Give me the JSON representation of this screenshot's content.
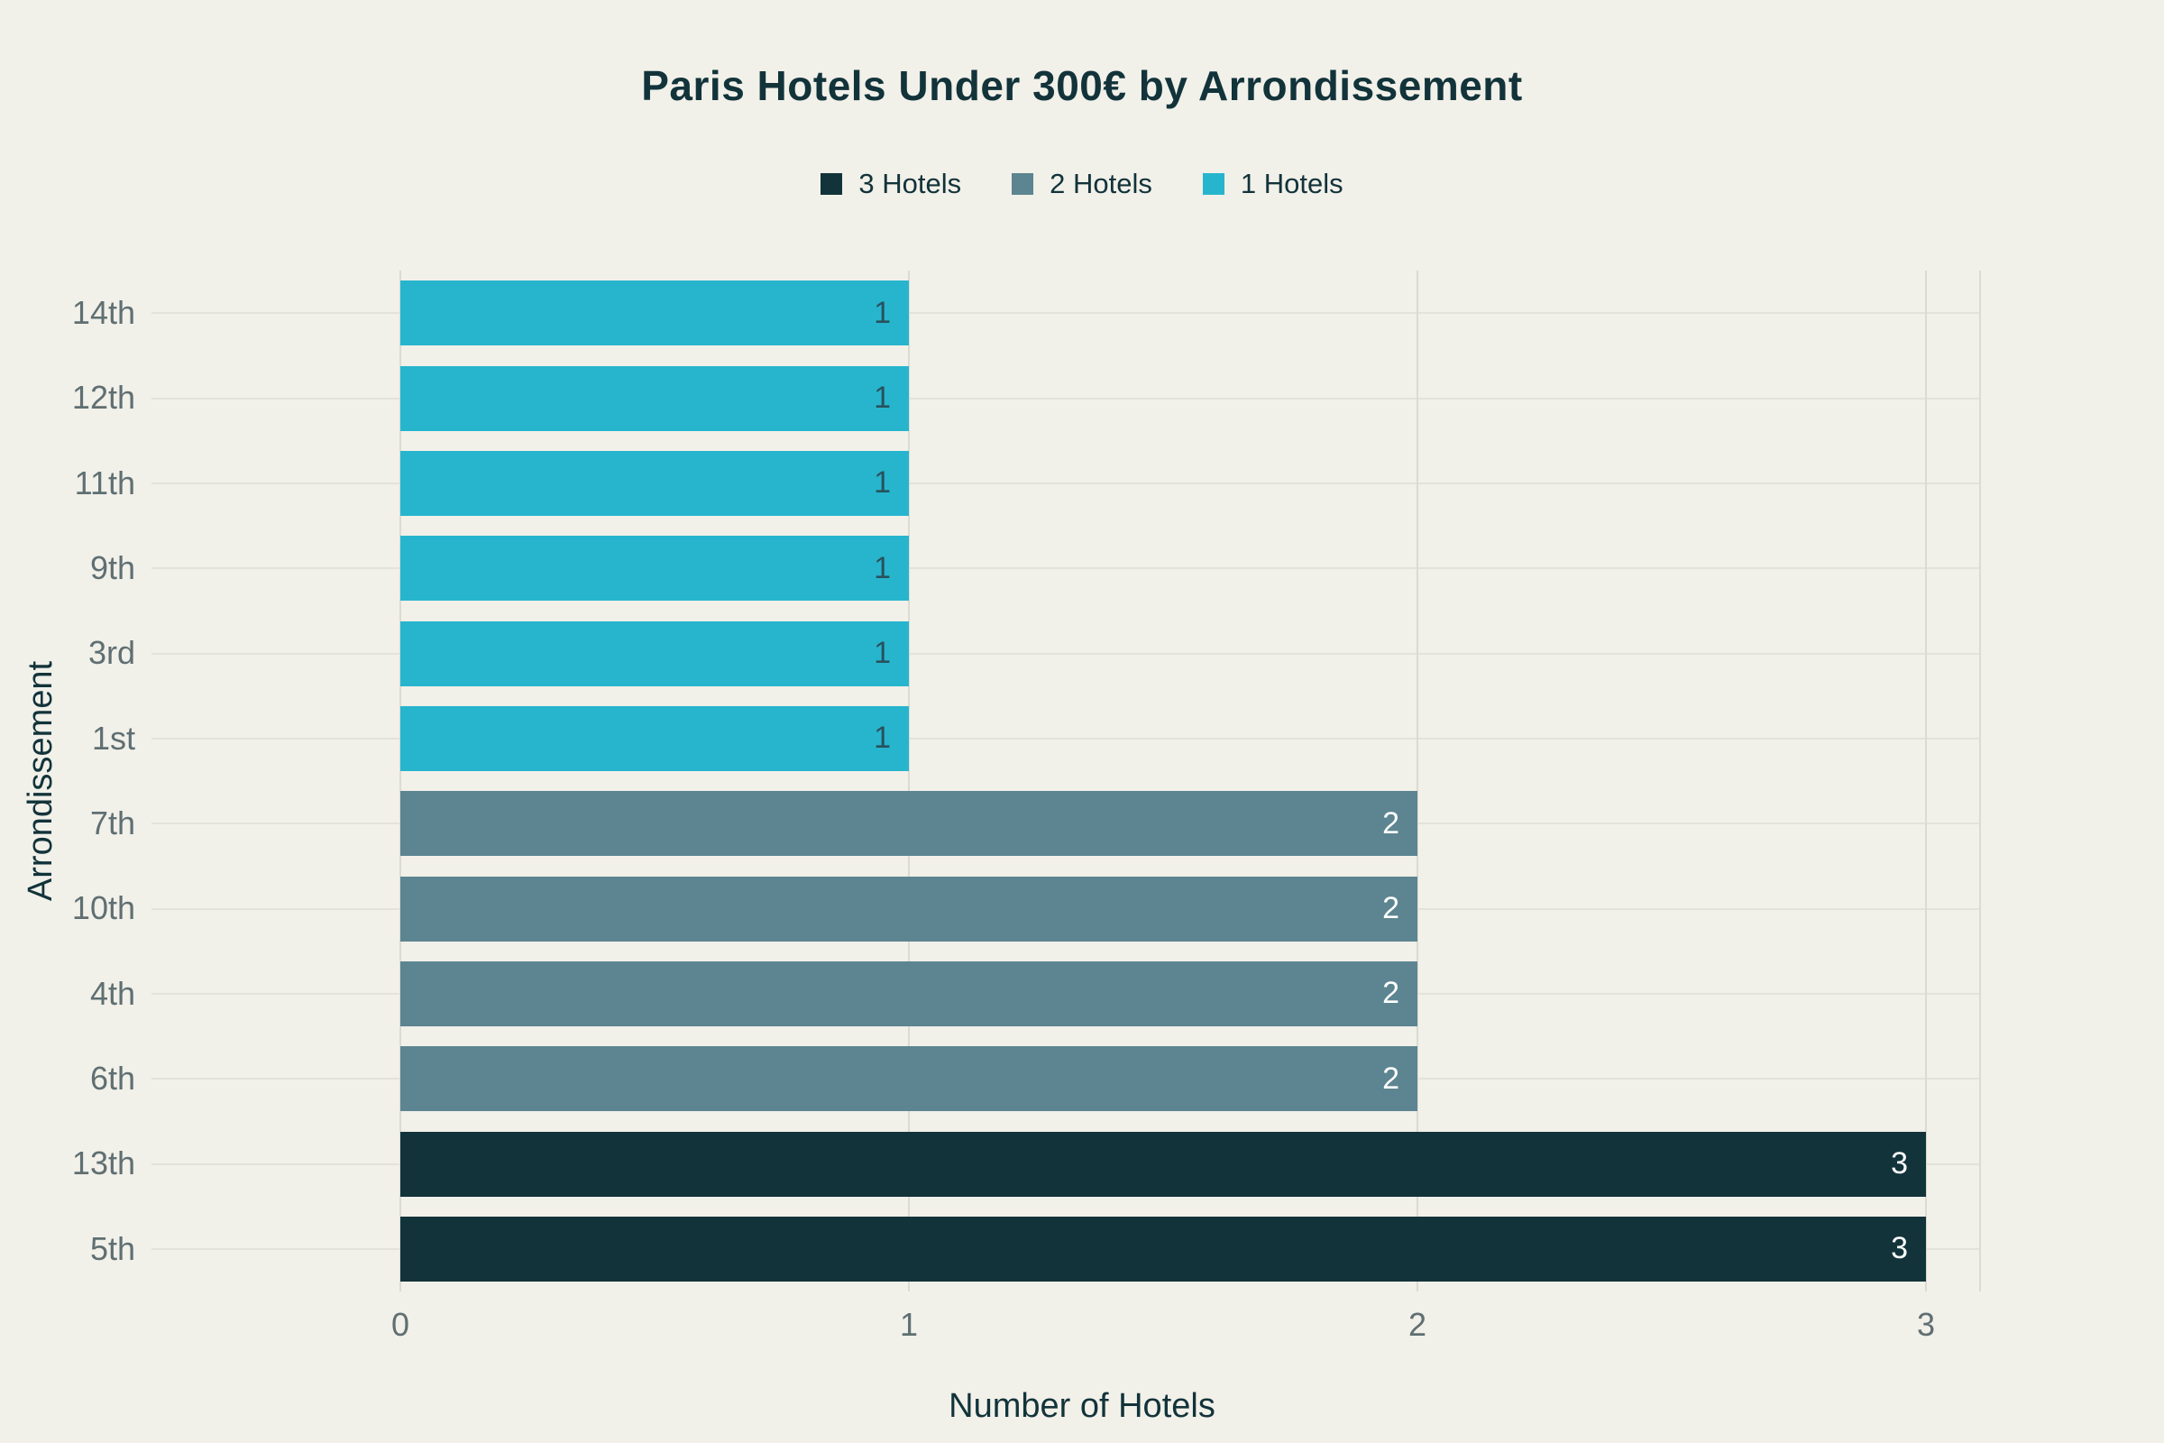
{
  "chart_data": {
    "type": "bar",
    "orientation": "horizontal",
    "title": "Paris Hotels Under 300€ by Arrondissement",
    "xlabel": "Number of Hotels",
    "ylabel": "Arrondissement",
    "categories": [
      "14th",
      "12th",
      "11th",
      "9th",
      "3rd",
      "1st",
      "7th",
      "10th",
      "4th",
      "6th",
      "13th",
      "5th"
    ],
    "values": [
      1,
      1,
      1,
      1,
      1,
      1,
      2,
      2,
      2,
      2,
      3,
      3
    ],
    "x_ticks": [
      0,
      1,
      2,
      3
    ],
    "xlim": [
      0,
      3
    ],
    "grid": true,
    "legend_position": "top-center",
    "legend": [
      {
        "label": "3 Hotels",
        "color": "#12333a"
      },
      {
        "label": "2 Hotels",
        "color": "#5c8591"
      },
      {
        "label": "1 Hotels",
        "color": "#27b5ce"
      }
    ],
    "colors_by_value": {
      "1": "#27b5ce",
      "2": "#5c8591",
      "3": "#12333a"
    },
    "value_label_colors": {
      "1": "#28525c",
      "2": "#ffffff",
      "3": "#ffffff"
    },
    "background": "#f1f0e9"
  }
}
